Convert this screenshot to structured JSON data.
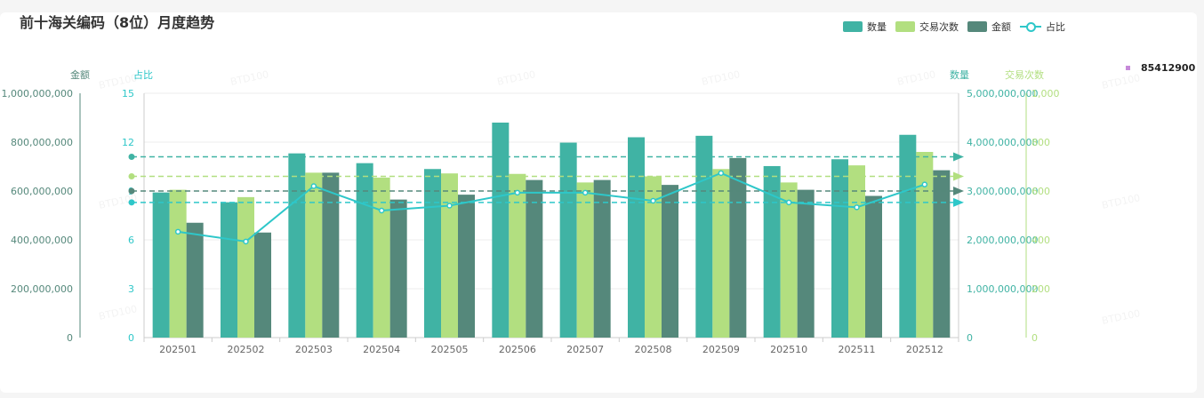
{
  "title": "前十海关编码（8位）月度趋势",
  "legend": [
    {
      "name": "数量",
      "color": "#40b3a4",
      "kind": "bar"
    },
    {
      "name": "交易次数",
      "color": "#b2df80",
      "kind": "bar"
    },
    {
      "name": "金额",
      "color": "#55887b",
      "kind": "bar"
    },
    {
      "name": "占比",
      "color": "#2ec7c9",
      "kind": "line"
    }
  ],
  "side_item": {
    "label": "85412900",
    "color": "#c68ad9"
  },
  "watermark": "BTD100",
  "chart_data": {
    "type": "bar",
    "categories": [
      "202501",
      "202502",
      "202503",
      "202504",
      "202505",
      "202506",
      "202507",
      "202508",
      "202509",
      "202510",
      "202511",
      "202512"
    ],
    "axes": {
      "amount": {
        "name": "金额",
        "min": 0,
        "max": 1000000000,
        "ticks": [
          "0",
          "200,000,000",
          "400,000,000",
          "600,000,000",
          "800,000,000",
          "1,000,000,000"
        ]
      },
      "ratio": {
        "name": "占比",
        "min": 0,
        "max": 15,
        "ticks": [
          "0",
          "3",
          "6",
          "9",
          "12",
          "15"
        ]
      },
      "quantity": {
        "name": "数量",
        "min": 0,
        "max": 5000000000,
        "ticks": [
          "0",
          "1,000,000,000",
          "2,000,000,000",
          "3,000,000,000",
          "4,000,000,000",
          "5,000,000,000"
        ]
      },
      "trades": {
        "name": "交易次数",
        "min": 0,
        "max": 1000,
        "ticks": [
          "0",
          "200",
          "400",
          "600",
          "800",
          "1,000"
        ]
      }
    },
    "series": [
      {
        "name": "数量",
        "axis": "quantity",
        "color": "#40b3a4",
        "values": [
          2970000000,
          2770000000,
          3770000000,
          3570000000,
          3450000000,
          4400000000,
          3990000000,
          4100000000,
          4130000000,
          3510000000,
          3650000000,
          4150000000
        ],
        "average": 3700000000
      },
      {
        "name": "交易次数",
        "axis": "trades",
        "color": "#b2df80",
        "values": [
          605,
          575,
          675,
          655,
          672,
          670,
          635,
          660,
          690,
          635,
          705,
          760
        ],
        "average": 660
      },
      {
        "name": "金额",
        "axis": "amount",
        "color": "#55887b",
        "values": [
          470000000,
          430000000,
          675000000,
          565000000,
          585000000,
          645000000,
          645000000,
          625000000,
          735000000,
          605000000,
          580000000,
          685000000
        ],
        "average": 600000000
      },
      {
        "name": "占比",
        "axis": "ratio",
        "color": "#2ec7c9",
        "type": "line",
        "values": [
          6.5,
          5.9,
          9.3,
          7.8,
          8.1,
          8.9,
          8.9,
          8.4,
          10.1,
          8.3,
          8.0,
          9.4
        ],
        "average": 8.3
      }
    ]
  }
}
